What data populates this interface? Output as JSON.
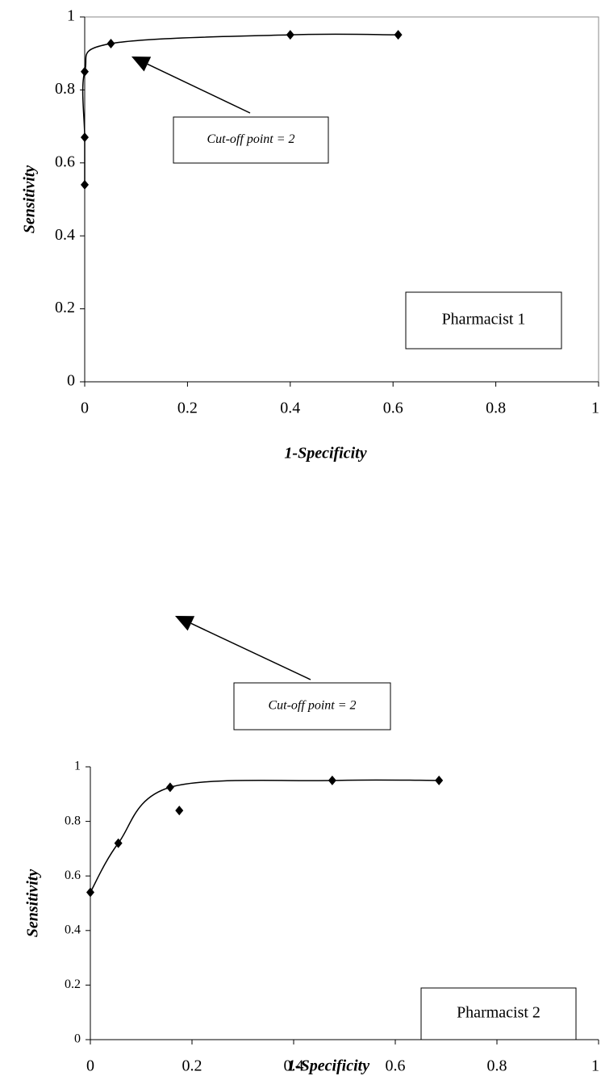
{
  "chart_data": [
    {
      "type": "scatter",
      "xlabel": "1-Specificity",
      "ylabel": "Sensitivity",
      "xlim": [
        0,
        1
      ],
      "ylim": [
        0,
        1
      ],
      "xticks": [
        0,
        0.2,
        0.4,
        0.6,
        0.8,
        1
      ],
      "yticks": [
        0,
        0.2,
        0.4,
        0.6,
        0.8,
        1
      ],
      "series": [
        {
          "color": "#000000",
          "line": true,
          "x": [
            0,
            0,
            0,
            0.051,
            0.4,
            0.61
          ],
          "values": [
            0.54,
            0.67,
            0.85,
            0.927,
            0.951,
            0.951
          ]
        }
      ],
      "annotations": [
        {
          "text": "Cut-off point = 2"
        },
        {
          "text": "Pharmacist 1"
        }
      ]
    },
    {
      "type": "scatter",
      "xlabel": "1-Specificity",
      "ylabel": "Sensitivity",
      "xlim": [
        0,
        1
      ],
      "ylim": [
        0,
        1
      ],
      "xticks": [
        0,
        0.2,
        0.4,
        0.6,
        0.8,
        1
      ],
      "yticks": [
        0,
        0.2,
        0.4,
        0.6,
        0.8,
        1
      ],
      "series": [
        {
          "color": "#000000",
          "line": true,
          "x": [
            0,
            0.055,
            0.157,
            0.476,
            0.686
          ],
          "values": [
            0.54,
            0.72,
            0.925,
            0.95,
            0.95
          ]
        },
        {
          "color": "#000000",
          "line": false,
          "x": [
            0.175
          ],
          "values": [
            0.84
          ]
        }
      ],
      "annotations": [
        {
          "text": "Cut-off point = 2"
        },
        {
          "text": "Pharmacist 2"
        }
      ]
    }
  ]
}
